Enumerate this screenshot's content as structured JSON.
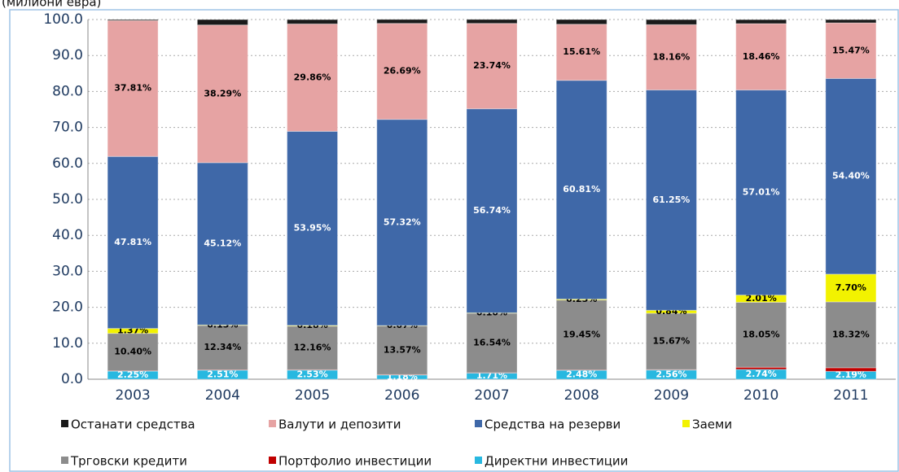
{
  "chart_data": {
    "type": "bar",
    "stacked": true,
    "subtitle": "(милиони евра)",
    "categories": [
      "2003",
      "2004",
      "2005",
      "2006",
      "2007",
      "2008",
      "2009",
      "2010",
      "2011"
    ],
    "series": [
      {
        "name": "Останати средства",
        "color": "#1a1a1a",
        "values": [
          0.26,
          1.5,
          1.2,
          1.1,
          1.1,
          1.3,
          1.4,
          1.1,
          0.9
        ]
      },
      {
        "name": "Валути и депозити",
        "color": "#e6a3a3",
        "values": [
          37.81,
          38.29,
          29.86,
          26.69,
          23.74,
          15.61,
          18.16,
          18.46,
          15.47
        ],
        "value_labels": [
          "37.81%",
          "38.29%",
          "29.86%",
          "26.69%",
          "23.74%",
          "15.61%",
          "18.16%",
          "18.46%",
          "15.47%"
        ]
      },
      {
        "name": "Средства на резерви",
        "color": "#3f68a8",
        "values": [
          47.81,
          45.12,
          53.95,
          57.32,
          56.74,
          60.81,
          61.25,
          57.01,
          54.4
        ],
        "value_labels": [
          "47.81%",
          "45.12%",
          "53.95%",
          "57.32%",
          "56.74%",
          "60.81%",
          "61.25%",
          "57.01%",
          "54.40%"
        ]
      },
      {
        "name": "Заеми",
        "color": "#f2f200",
        "values": [
          1.37,
          0.13,
          0.18,
          0.07,
          0.1,
          0.25,
          0.84,
          2.01,
          7.7
        ],
        "value_labels": [
          "1.37%",
          "0.13%",
          "0.18%",
          "0.07%",
          "0.10%",
          "0.25%",
          "0.84%",
          "2.01%",
          "7.70%"
        ]
      },
      {
        "name": "Трговски кредити",
        "color": "#8c8c8c",
        "values": [
          10.4,
          12.34,
          12.16,
          13.57,
          16.54,
          19.45,
          15.67,
          18.05,
          18.32
        ],
        "value_labels": [
          "10.40%",
          "12.34%",
          "12.16%",
          "13.57%",
          "16.54%",
          "19.45%",
          "15.67%",
          "18.05%",
          "18.32%"
        ]
      },
      {
        "name": "Портфолио инвестиции",
        "color": "#c00000",
        "values": [
          0.1,
          0.1,
          0.1,
          0.1,
          0.1,
          0.1,
          0.1,
          0.6,
          1.0
        ]
      },
      {
        "name": "Директни инвестиции",
        "color": "#28b8e0",
        "values": [
          2.25,
          2.51,
          2.53,
          1.18,
          1.71,
          2.48,
          2.56,
          2.74,
          2.19
        ],
        "value_labels": [
          "2.25%",
          "2.51%",
          "2.53%",
          "1.18%",
          "1.71%",
          "2.48%",
          "2.56%",
          "2.74%",
          "2.19%"
        ]
      }
    ],
    "ylim": [
      0,
      100
    ],
    "yticks": [
      {
        "value": 0,
        "label": "0.0"
      },
      {
        "value": 10,
        "label": "10.0"
      },
      {
        "value": 20,
        "label": "20.0"
      },
      {
        "value": 30,
        "label": "30.0"
      },
      {
        "value": 40,
        "label": "40.0"
      },
      {
        "value": 50,
        "label": "50.0"
      },
      {
        "value": 60,
        "label": "60.0"
      },
      {
        "value": 70,
        "label": "70.0"
      },
      {
        "value": 80,
        "label": "80.0"
      },
      {
        "value": 90,
        "label": "90.0"
      },
      {
        "value": 100,
        "label": "100.0"
      }
    ],
    "grid": true,
    "legend": "bottom"
  }
}
